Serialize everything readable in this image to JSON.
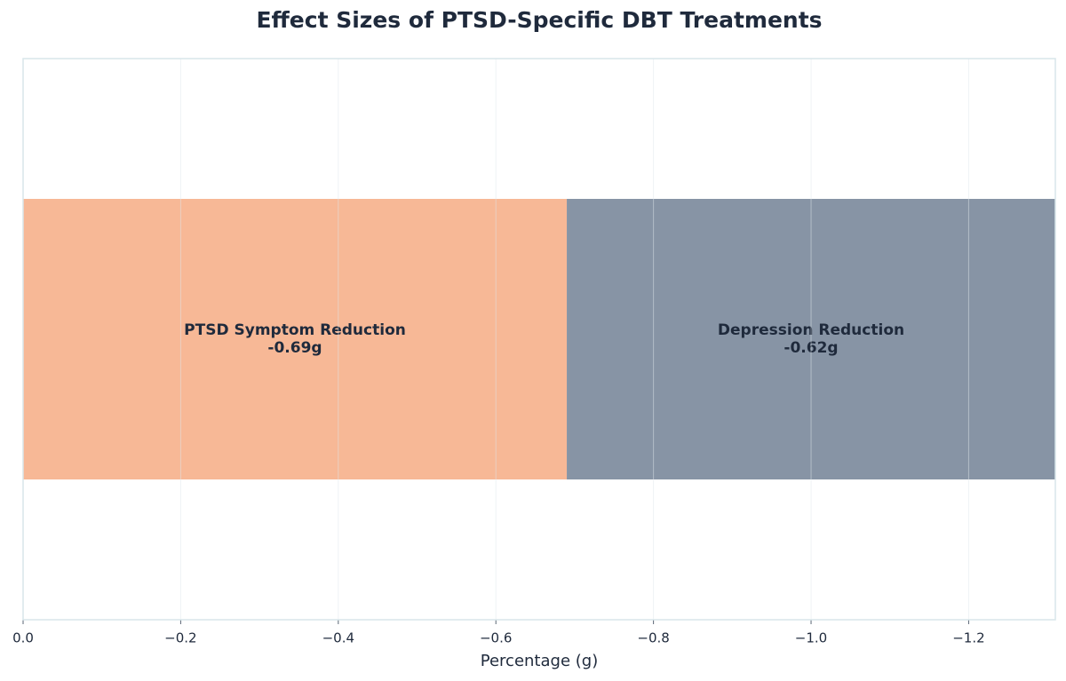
{
  "chart_data": {
    "type": "stacked_bar",
    "orientation": "horizontal",
    "title": "Effect Sizes of PTSD-Specific DBT Treatments",
    "xlabel": "Percentage (g)",
    "series": [
      {
        "name": "PTSD Symptom Reduction",
        "color": "#f7b896",
        "values": [
          -0.69
        ],
        "value_labels": [
          "-0.69g"
        ]
      },
      {
        "name": "Depression Reduction",
        "color": "#8794a5",
        "values": [
          -0.62
        ],
        "value_labels": [
          "-0.62g"
        ]
      }
    ],
    "xlim": [
      0,
      -1.31
    ],
    "xticks": [
      {
        "value": 0,
        "label": "0.0"
      },
      {
        "value": -0.2,
        "label": "−0.2"
      },
      {
        "value": -0.4,
        "label": "−0.4"
      },
      {
        "value": -0.6,
        "label": "−0.6"
      },
      {
        "value": -0.8,
        "label": "−0.8"
      },
      {
        "value": -1.0,
        "label": "−1.0"
      },
      {
        "value": -1.2,
        "label": "−1.2"
      }
    ],
    "grid": true
  }
}
